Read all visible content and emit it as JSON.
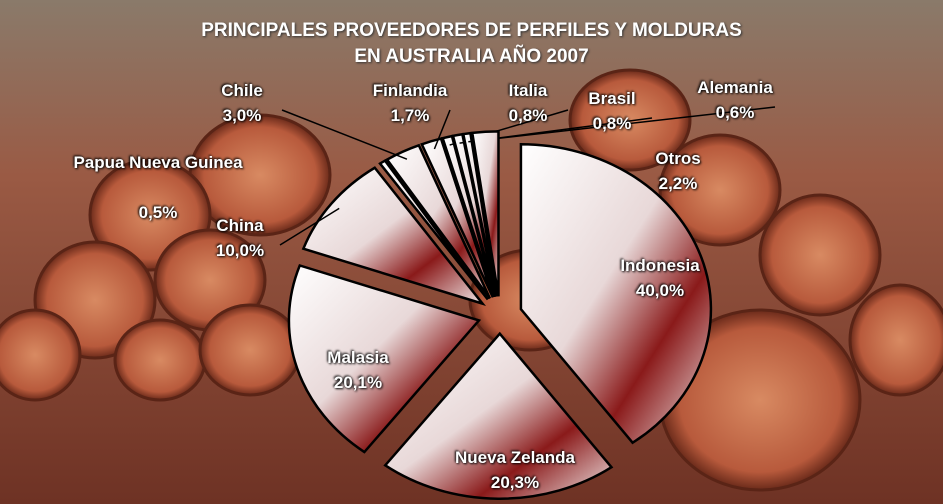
{
  "chart_data": {
    "type": "pie",
    "title": [
      "PRINCIPALES PROVEEDORES DE PERFILES Y MOLDURAS",
      "EN AUSTRALIA AÑO 2007"
    ],
    "categories": [
      "Indonesia",
      "Nueva Zelanda",
      "Malasia",
      "China",
      "Papua Nueva Guinea",
      "Chile",
      "Finlandia",
      "Italia",
      "Brasil",
      "Alemania",
      "Otros"
    ],
    "values": [
      40.0,
      20.3,
      20.1,
      10.0,
      0.5,
      3.0,
      1.7,
      0.8,
      0.8,
      0.6,
      2.2
    ],
    "value_labels": [
      "40,0%",
      "20,3%",
      "20,1%",
      "10,0%",
      "0,5%",
      "3,0%",
      "1,7%",
      "0,8%",
      "0,8%",
      "0,6%",
      "2,2%"
    ]
  }
}
